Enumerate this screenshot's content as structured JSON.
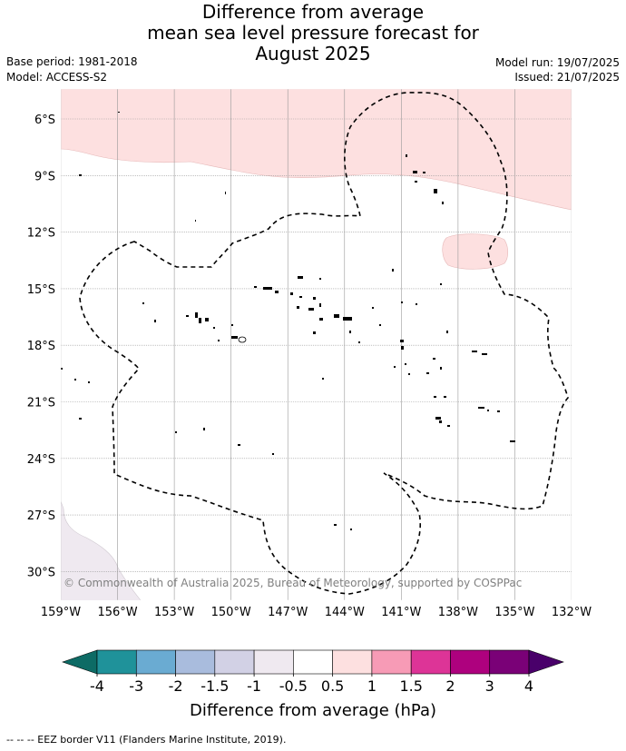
{
  "title": {
    "line1": "Difference from average",
    "line2": "mean sea level pressure forecast for",
    "line3": "August 2025"
  },
  "meta": {
    "base_period": "Base period: 1981-2018",
    "model": "Model: ACCESS-S2",
    "model_run": "Model run: 19/07/2025",
    "issued": "Issued: 21/07/2025"
  },
  "map": {
    "lat_ticks": [
      "6°S",
      "9°S",
      "12°S",
      "15°S",
      "18°S",
      "21°S",
      "24°S",
      "27°S",
      "30°S"
    ],
    "lon_ticks": [
      "159°W",
      "156°W",
      "153°W",
      "150°W",
      "147°W",
      "144°W",
      "141°W",
      "138°W",
      "135°W",
      "132°W"
    ],
    "copyright": "© Commonwealth of Australia 2025, Bureau of Meteorology, supported by COSPPac",
    "colors": {
      "positive_0_5_to_1": "#fde0e0",
      "negative_0_5_to_1": "#efe9f0",
      "grid": "#999999",
      "eez_border": "#000000"
    }
  },
  "colorbar": {
    "label": "Difference from average (hPa)",
    "tick_labels": [
      "-4",
      "-3",
      "-2",
      "-1.5",
      "-1",
      "-0.5",
      "0.5",
      "1",
      "1.5",
      "2",
      "3",
      "4"
    ],
    "colors": [
      "#0d6b65",
      "#1f929a",
      "#6aabd2",
      "#a9bcdd",
      "#d2d1e5",
      "#efe9f0",
      "#ffffff",
      "#fde0e0",
      "#f79bb6",
      "#dd3497",
      "#ae017e",
      "#7a0177",
      "#49006a"
    ]
  },
  "footnote": "--  --  -- EEZ border V11 (Flanders Marine Institute, 2019)."
}
